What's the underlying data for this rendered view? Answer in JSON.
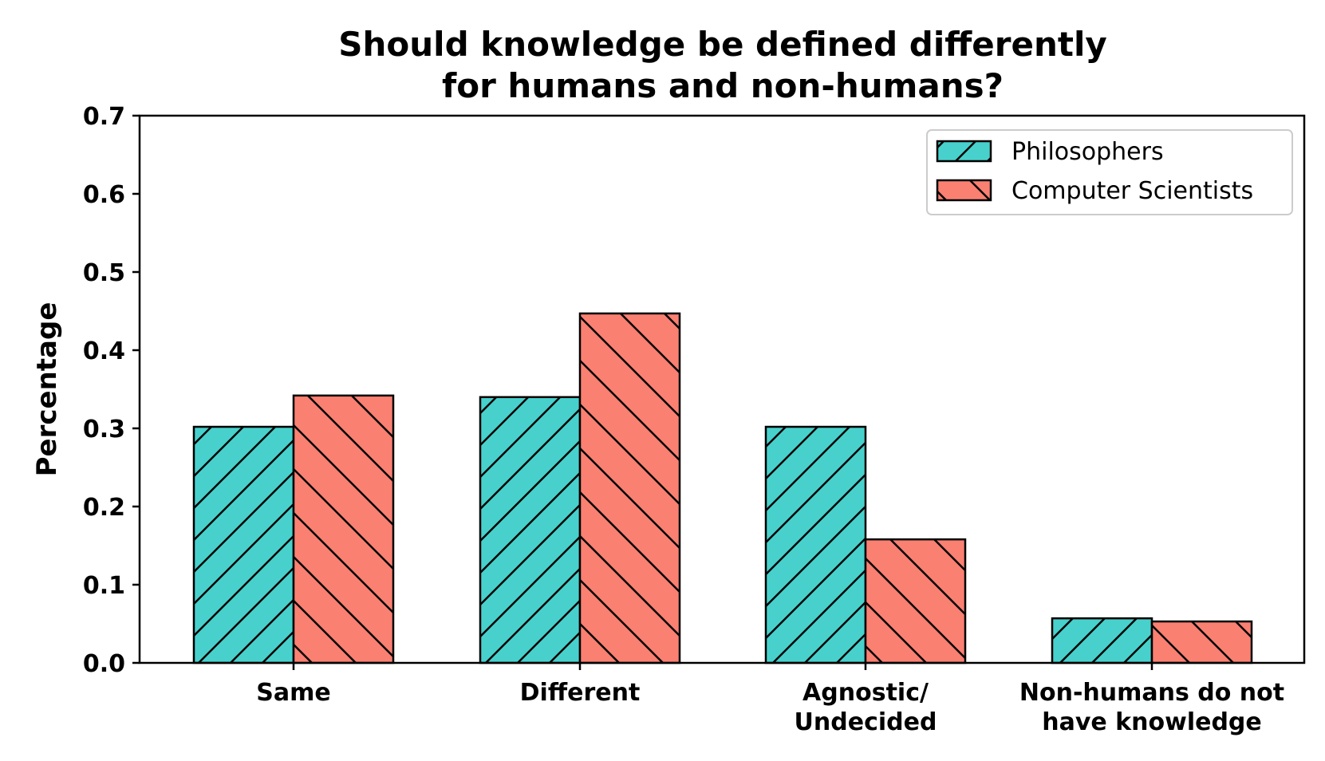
{
  "chart_data": {
    "type": "bar",
    "title": [
      "Should knowledge be defined differently",
      "for humans and non-humans?"
    ],
    "xlabel": "",
    "ylabel": "Percentage",
    "ylim": [
      0,
      0.7
    ],
    "yticks": [
      "0.0",
      "0.1",
      "0.2",
      "0.3",
      "0.4",
      "0.5",
      "0.6",
      "0.7"
    ],
    "categories": [
      [
        "Same"
      ],
      [
        "Different"
      ],
      [
        "Agnostic/",
        "Undecided"
      ],
      [
        "Non-humans do not",
        "have knowledge"
      ]
    ],
    "series": [
      {
        "name": "Philosophers",
        "color": "#48d1cc",
        "hatch": "forward-diagonal",
        "values": [
          0.302,
          0.34,
          0.302,
          0.057
        ]
      },
      {
        "name": "Computer Scientists",
        "color": "#fa8072",
        "hatch": "backward-diagonal",
        "values": [
          0.342,
          0.447,
          0.158,
          0.053
        ]
      }
    ],
    "legend_position": "top-right",
    "grid": false
  }
}
